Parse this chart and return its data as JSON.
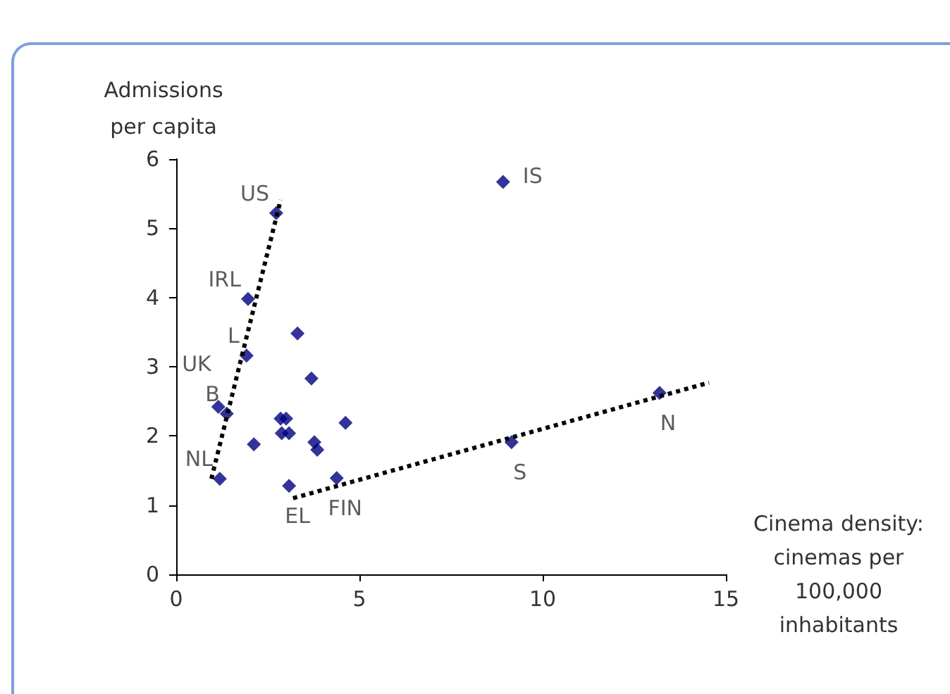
{
  "chart_data": {
    "type": "scatter",
    "xlabel": "Cinema density:\ncinemas per\n100,000\ninhabitants",
    "ylabel": "Admissions\nper capita",
    "xlim": [
      0,
      15
    ],
    "xticks": [
      0,
      5,
      10,
      15
    ],
    "ylim": [
      0,
      6
    ],
    "yticks": [
      0,
      1,
      2,
      3,
      4,
      5,
      6
    ],
    "marker": "diamond",
    "series": [
      {
        "type": "scatter",
        "color": "#000080",
        "x": [
          2.73,
          1.96,
          1.92,
          1.15,
          1.38,
          1.19,
          3.31,
          3.69,
          2.12,
          2.85,
          3.0,
          2.88,
          3.08,
          3.77,
          3.85,
          4.62,
          3.08,
          4.38,
          8.92,
          9.15,
          13.19
        ],
        "values": [
          5.22,
          3.98,
          3.16,
          2.42,
          2.32,
          1.38,
          3.48,
          2.83,
          1.88,
          2.25,
          2.25,
          2.04,
          2.04,
          1.91,
          1.8,
          2.19,
          1.28,
          1.39,
          5.67,
          1.91,
          2.62
        ]
      },
      {
        "type": "line",
        "color": "#000000",
        "line_style": "dotted",
        "marker": "none",
        "x": [
          0.96,
          2.85
        ],
        "values": [
          1.38,
          5.41
        ]
      },
      {
        "type": "line",
        "color": "#000000",
        "line_style": "dotted",
        "marker": "none",
        "x": [
          3.19,
          14.54
        ],
        "values": [
          1.1,
          2.77
        ]
      }
    ],
    "annotations": [
      {
        "text": "US",
        "x": 2.73,
        "y": 5.22
      },
      {
        "text": "IS",
        "x": 8.92,
        "y": 5.67
      },
      {
        "text": "IRL",
        "x": 1.96,
        "y": 3.98
      },
      {
        "text": "L",
        "x": 1.92,
        "y": 3.16
      },
      {
        "text": "UK",
        "x": 1.15,
        "y": 2.42
      },
      {
        "text": "B",
        "x": 1.38,
        "y": 2.32
      },
      {
        "text": "NL",
        "x": 1.19,
        "y": 1.38
      },
      {
        "text": "EL",
        "x": 3.08,
        "y": 1.28
      },
      {
        "text": "FIN",
        "x": 4.38,
        "y": 1.39
      },
      {
        "text": "S",
        "x": 9.15,
        "y": 1.91
      },
      {
        "text": "N",
        "x": 13.19,
        "y": 2.62
      }
    ]
  }
}
